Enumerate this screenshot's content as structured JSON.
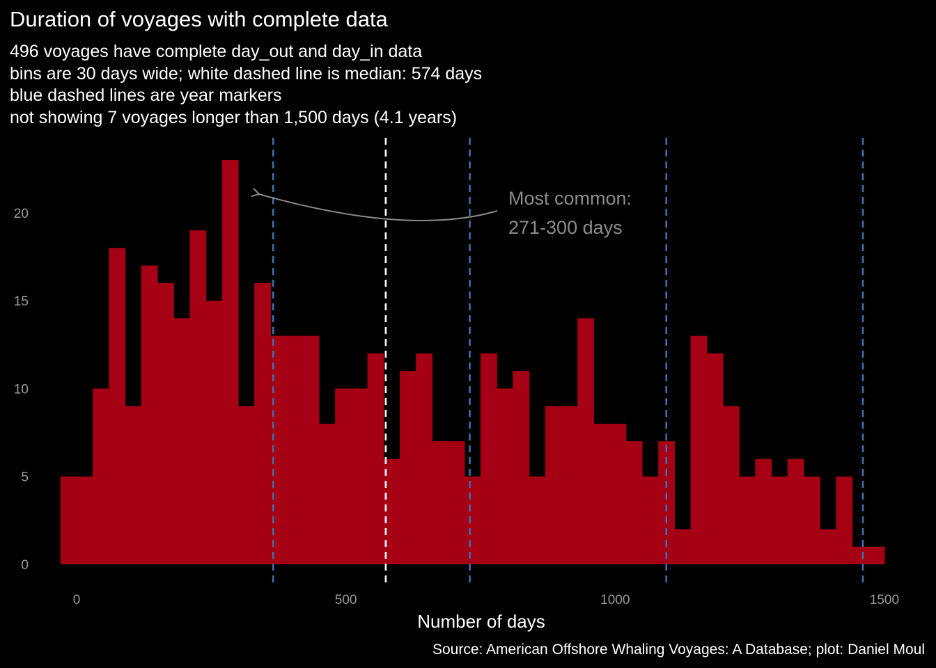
{
  "header": {
    "title": "Duration of voyages with complete data",
    "subtitle_lines": [
      "496 voyages have complete day_out and day_in data",
      "bins are 30 days wide; white dashed line is median: 574 days",
      "blue dashed lines are year markers",
      "not showing 7 voyages longer than 1,500 days (4.1 years)"
    ]
  },
  "caption": "Source: American Offshore Whaling Voyages: A Database; plot: Daniel Moul",
  "colors": {
    "background": "#000000",
    "bars": "#a50014",
    "median_line": "#ffffff",
    "year_lines": "#3d6fb4",
    "annotation": "#8c8c8c"
  },
  "chart_data": {
    "type": "bar",
    "xlabel": "Number of days",
    "ylabel": "",
    "bin_width_days": 30,
    "bin_start_days": [
      -30,
      0,
      30,
      60,
      90,
      120,
      150,
      180,
      210,
      240,
      270,
      300,
      330,
      360,
      390,
      420,
      450,
      480,
      510,
      540,
      570,
      600,
      630,
      660,
      690,
      720,
      750,
      780,
      810,
      840,
      870,
      900,
      930,
      960,
      990,
      1020,
      1050,
      1080,
      1110,
      1140,
      1170,
      1200,
      1230,
      1260,
      1290,
      1320,
      1350,
      1380,
      1410,
      1440,
      1470,
      1500
    ],
    "values": [
      5,
      5,
      10,
      18,
      9,
      17,
      16,
      14,
      19,
      15,
      23,
      9,
      16,
      13,
      13,
      13,
      8,
      10,
      10,
      12,
      6,
      11,
      12,
      7,
      7,
      5,
      12,
      10,
      11,
      5,
      9,
      9,
      14,
      8,
      8,
      7,
      5,
      7,
      2,
      13,
      12,
      9,
      5,
      6,
      5,
      6,
      5,
      2,
      5,
      1,
      1
    ],
    "xlim": [
      -30,
      1560
    ],
    "ylim": [
      0,
      23
    ],
    "x_ticks": [
      0,
      500,
      1000,
      1500
    ],
    "x_tick_labels": [
      "0",
      "500",
      "1000",
      "1500"
    ],
    "y_ticks": [
      0,
      5,
      10,
      15,
      20
    ],
    "y_tick_labels": [
      "0",
      "5",
      "10",
      "15",
      "20"
    ],
    "median_days": 574,
    "year_markers_days": [
      365,
      730,
      1095,
      1460
    ],
    "annotation": {
      "lines": [
        "Most common:",
        "271-300 days"
      ]
    },
    "grid": false,
    "legend": "none"
  }
}
